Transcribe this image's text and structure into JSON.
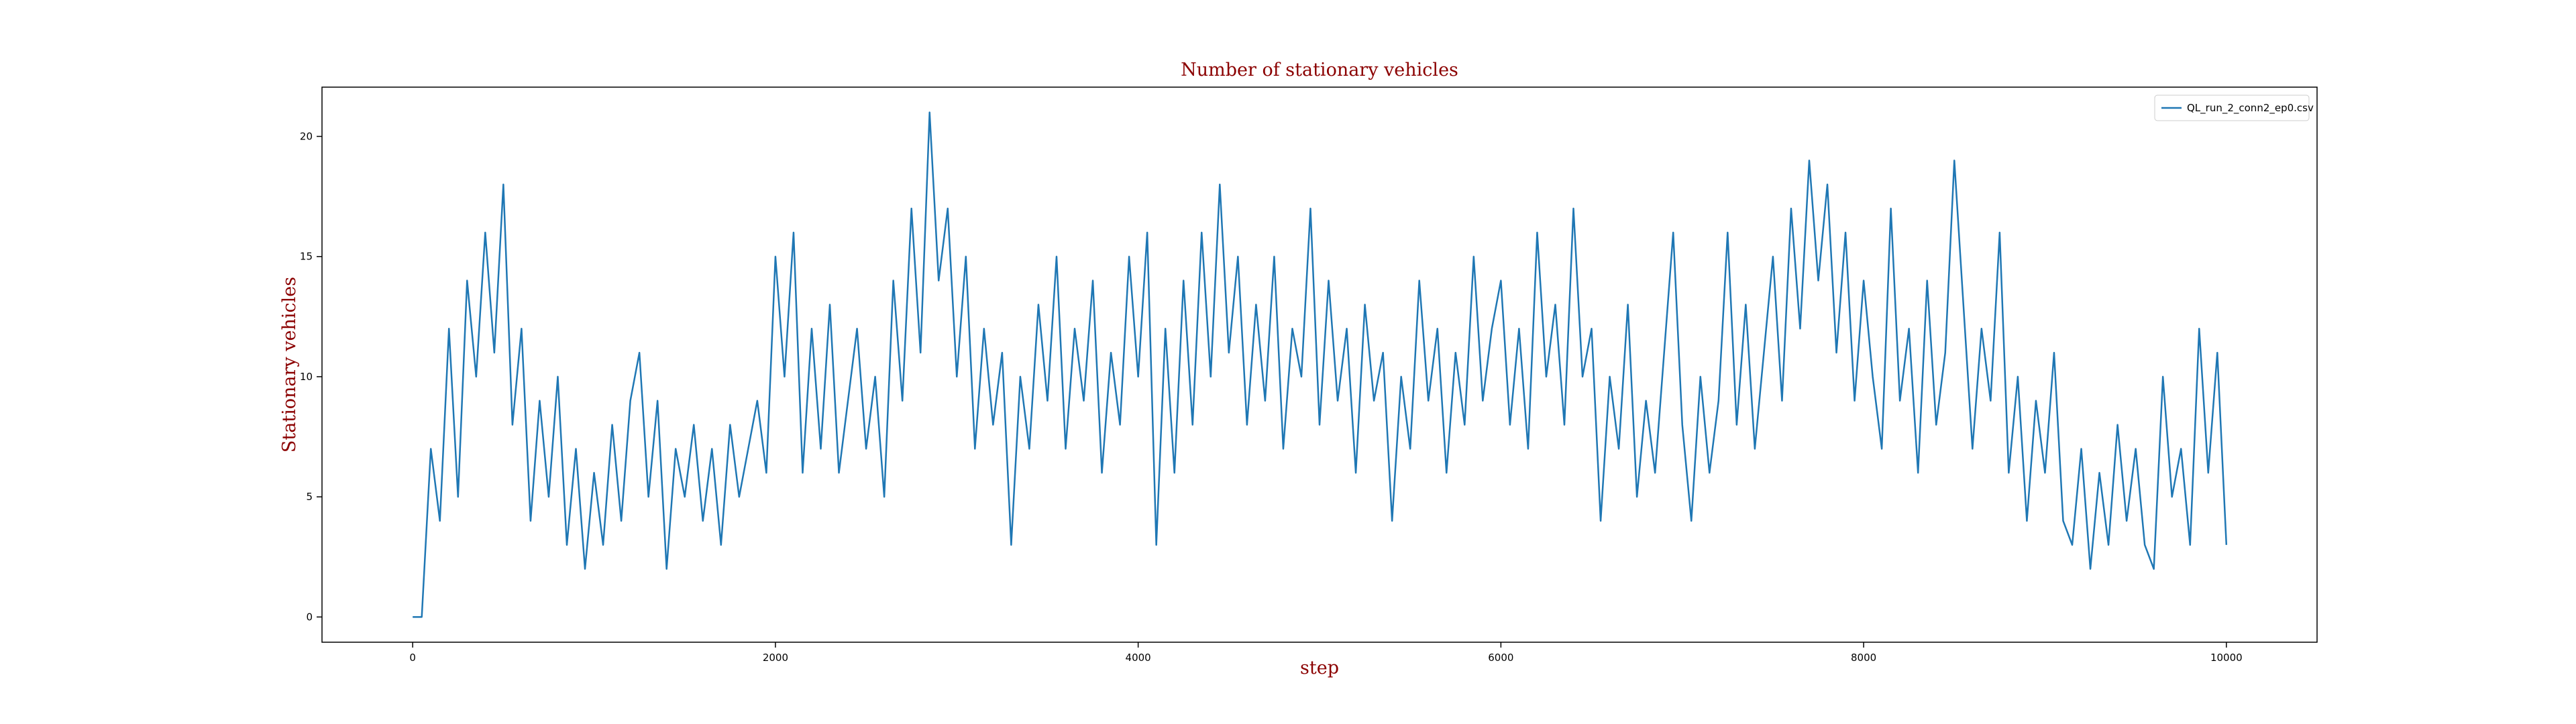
{
  "chart_data": {
    "type": "line",
    "title": "Number of stationary vehicles",
    "xlabel": "step",
    "ylabel": "Stationary vehicles",
    "x": [
      0,
      50,
      100,
      150,
      200,
      250,
      300,
      350,
      400,
      450,
      500,
      550,
      600,
      650,
      700,
      750,
      800,
      850,
      900,
      950,
      1000,
      1050,
      1100,
      1150,
      1200,
      1250,
      1300,
      1350,
      1400,
      1450,
      1500,
      1550,
      1600,
      1650,
      1700,
      1750,
      1800,
      1850,
      1900,
      1950,
      2000,
      2050,
      2100,
      2150,
      2200,
      2250,
      2300,
      2350,
      2400,
      2450,
      2500,
      2550,
      2600,
      2650,
      2700,
      2750,
      2800,
      2850,
      2900,
      2950,
      3000,
      3050,
      3100,
      3150,
      3200,
      3250,
      3300,
      3350,
      3400,
      3450,
      3500,
      3550,
      3600,
      3650,
      3700,
      3750,
      3800,
      3850,
      3900,
      3950,
      4000,
      4050,
      4100,
      4150,
      4200,
      4250,
      4300,
      4350,
      4400,
      4450,
      4500,
      4550,
      4600,
      4650,
      4700,
      4750,
      4800,
      4850,
      4900,
      4950,
      5000,
      5050,
      5100,
      5150,
      5200,
      5250,
      5300,
      5350,
      5400,
      5450,
      5500,
      5550,
      5600,
      5650,
      5700,
      5750,
      5800,
      5850,
      5900,
      5950,
      6000,
      6050,
      6100,
      6150,
      6200,
      6250,
      6300,
      6350,
      6400,
      6450,
      6500,
      6550,
      6600,
      6650,
      6700,
      6750,
      6800,
      6850,
      6900,
      6950,
      7000,
      7050,
      7100,
      7150,
      7200,
      7250,
      7300,
      7350,
      7400,
      7450,
      7500,
      7550,
      7600,
      7650,
      7700,
      7750,
      7800,
      7850,
      7900,
      7950,
      8000,
      8050,
      8100,
      8150,
      8200,
      8250,
      8300,
      8350,
      8400,
      8450,
      8500,
      8550,
      8600,
      8650,
      8700,
      8750,
      8800,
      8850,
      8900,
      8950,
      9000,
      9050,
      9100,
      9150,
      9200,
      9250,
      9300,
      9350,
      9400,
      9450,
      9500,
      9550,
      9600,
      9650,
      9700,
      9750,
      9800,
      9850,
      9900,
      9950,
      10000
    ],
    "series": [
      {
        "name": "QL_run_2_conn2_ep0.csv",
        "color": "#1f77b4",
        "values": [
          0,
          0,
          7,
          4,
          12,
          5,
          14,
          10,
          16,
          11,
          18,
          8,
          12,
          4,
          9,
          5,
          10,
          3,
          7,
          2,
          6,
          3,
          8,
          4,
          9,
          11,
          5,
          9,
          2,
          7,
          5,
          8,
          4,
          7,
          3,
          8,
          5,
          7,
          9,
          6,
          15,
          10,
          16,
          6,
          12,
          7,
          13,
          6,
          9,
          12,
          7,
          10,
          5,
          14,
          9,
          17,
          11,
          21,
          14,
          17,
          10,
          15,
          7,
          12,
          8,
          11,
          3,
          10,
          7,
          13,
          9,
          15,
          7,
          12,
          9,
          14,
          6,
          11,
          8,
          15,
          10,
          16,
          3,
          12,
          6,
          14,
          8,
          16,
          10,
          18,
          11,
          15,
          8,
          13,
          9,
          15,
          7,
          12,
          10,
          17,
          8,
          14,
          9,
          12,
          6,
          13,
          9,
          11,
          4,
          10,
          7,
          14,
          9,
          12,
          6,
          11,
          8,
          15,
          9,
          12,
          14,
          8,
          12,
          7,
          16,
          10,
          13,
          8,
          17,
          10,
          12,
          4,
          10,
          7,
          13,
          5,
          9,
          6,
          11,
          16,
          8,
          4,
          10,
          6,
          9,
          16,
          8,
          13,
          7,
          11,
          15,
          9,
          17,
          12,
          19,
          14,
          18,
          11,
          16,
          9,
          14,
          10,
          7,
          17,
          9,
          12,
          6,
          14,
          8,
          11,
          19,
          13,
          7,
          12,
          9,
          16,
          6,
          10,
          4,
          9,
          6,
          11,
          4,
          3,
          7,
          2,
          6,
          3,
          8,
          4,
          7,
          3,
          2,
          10,
          5,
          7,
          3,
          12,
          6,
          11,
          3
        ]
      }
    ],
    "xlim": [
      -500,
      10500
    ],
    "ylim": [
      -1.05,
      22.05
    ],
    "xticks": [
      0,
      2000,
      4000,
      6000,
      8000,
      10000
    ],
    "yticks": [
      0,
      5,
      10,
      15,
      20
    ],
    "grid": false,
    "legend": "upper right"
  }
}
